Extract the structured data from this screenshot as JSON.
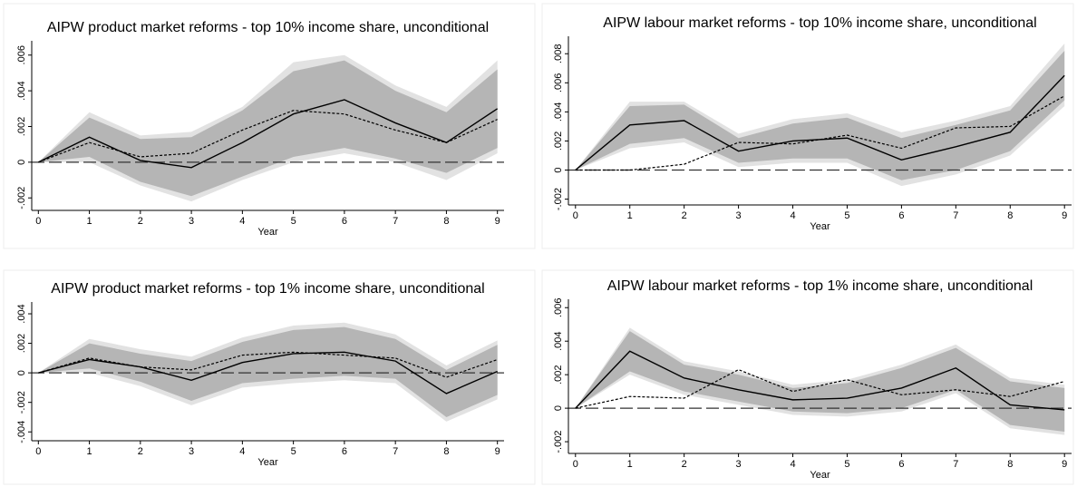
{
  "chart_data": [
    {
      "type": "line",
      "title": "AIPW product market reforms - top 10% income share, unconditional",
      "xlabel": "Year",
      "x": [
        0,
        1,
        2,
        3,
        4,
        5,
        6,
        7,
        8,
        9
      ],
      "xlim": [
        -0.13,
        9.13
      ],
      "xticks": [
        0,
        1,
        2,
        3,
        4,
        5,
        6,
        7,
        8,
        9
      ],
      "ylim": [
        -0.0027,
        0.0068
      ],
      "yticks": [
        {
          "value": -0.002,
          "label": "-.002"
        },
        0,
        {
          "value": 0.002,
          "label": ".002"
        },
        {
          "value": 0.004,
          "label": ".004"
        },
        {
          "value": 0.006,
          "label": ".006"
        }
      ],
      "hline": 0,
      "bands": [
        {
          "color": "#e2e2e2",
          "lower": [
            0,
            0,
            -0.0013,
            -0.0022,
            -0.001,
            0,
            0.0005,
            0,
            -0.001,
            0.0005
          ],
          "upper": [
            0,
            0.0028,
            0.0015,
            0.0017,
            0.0031,
            0.0056,
            0.006,
            0.0043,
            0.0031,
            0.0057
          ]
        },
        {
          "color": "#b5b5b5",
          "lower": [
            0,
            0.0003,
            -0.0011,
            -0.0019,
            -0.0008,
            0.0003,
            0.0008,
            0.0002,
            -0.0006,
            0.0008
          ],
          "upper": [
            0,
            0.0025,
            0.0013,
            0.0014,
            0.0029,
            0.0051,
            0.0057,
            0.004,
            0.0028,
            0.0052
          ]
        }
      ],
      "series": [
        {
          "color": "#000000",
          "style": "solid",
          "values": [
            0,
            0.0014,
            0.0001,
            -0.0003,
            0.0011,
            0.0027,
            0.0035,
            0.0022,
            0.0011,
            0.003
          ]
        },
        {
          "color": "#000000",
          "style": "dashed",
          "values": [
            0,
            0.0011,
            0.0003,
            0.0005,
            0.0018,
            0.0029,
            0.0027,
            0.0018,
            0.0011,
            0.0024
          ]
        }
      ]
    },
    {
      "type": "line",
      "title": "AIPW labour market reforms - top 10% income share, unconditional",
      "xlabel": "Year",
      "x": [
        0,
        1,
        2,
        3,
        4,
        5,
        6,
        7,
        8,
        9
      ],
      "xlim": [
        -0.13,
        9.13
      ],
      "xticks": [
        0,
        1,
        2,
        3,
        4,
        5,
        6,
        7,
        8,
        9
      ],
      "ylim": [
        -0.0024,
        0.0092
      ],
      "yticks": [
        {
          "value": -0.002,
          "label": "-.002"
        },
        0,
        {
          "value": 0.002,
          "label": ".002"
        },
        {
          "value": 0.004,
          "label": ".004"
        },
        {
          "value": 0.006,
          "label": ".006"
        },
        {
          "value": 0.008,
          "label": ".008"
        }
      ],
      "hline": 0,
      "bands": [
        {
          "color": "#e2e2e2",
          "lower": [
            0,
            0.0015,
            0.0019,
            0.0002,
            0.0005,
            0.0005,
            -0.0011,
            -0.0003,
            0.001,
            0.0044
          ],
          "upper": [
            0,
            0.0047,
            0.0047,
            0.0025,
            0.0035,
            0.0039,
            0.0026,
            0.0034,
            0.0044,
            0.0087
          ]
        },
        {
          "color": "#b5b5b5",
          "lower": [
            0,
            0.0018,
            0.0022,
            0.0005,
            0.0008,
            0.0008,
            -0.0007,
            0,
            0.0013,
            0.0048
          ],
          "upper": [
            0,
            0.0044,
            0.0045,
            0.0022,
            0.0032,
            0.0036,
            0.0022,
            0.0031,
            0.0041,
            0.0082
          ]
        }
      ],
      "series": [
        {
          "color": "#000000",
          "style": "solid",
          "values": [
            0,
            0.0031,
            0.0034,
            0.0013,
            0.002,
            0.0022,
            0.0007,
            0.0016,
            0.0026,
            0.0065
          ]
        },
        {
          "color": "#000000",
          "style": "dashed",
          "values": [
            0,
            0,
            0.0004,
            0.0019,
            0.0018,
            0.0024,
            0.0015,
            0.0029,
            0.003,
            0.0051
          ]
        }
      ]
    },
    {
      "type": "line",
      "title": "AIPW product market reforms - top 1% income share, unconditional",
      "xlabel": "Year",
      "x": [
        0,
        1,
        2,
        3,
        4,
        5,
        6,
        7,
        8,
        9
      ],
      "xlim": [
        -0.13,
        9.13
      ],
      "xticks": [
        0,
        1,
        2,
        3,
        4,
        5,
        6,
        7,
        8,
        9
      ],
      "ylim": [
        -0.0046,
        0.0048
      ],
      "yticks": [
        {
          "value": -0.004,
          "label": "-.004"
        },
        {
          "value": -0.002,
          "label": "-.002"
        },
        0,
        {
          "value": 0.002,
          "label": ".002"
        },
        {
          "value": 0.004,
          "label": ".004"
        }
      ],
      "hline": 0,
      "bands": [
        {
          "color": "#e2e2e2",
          "lower": [
            0,
            0,
            -0.0009,
            -0.0022,
            -0.001,
            -0.0007,
            -0.0005,
            -0.0007,
            -0.0033,
            -0.0018
          ],
          "upper": [
            0,
            0.0023,
            0.0016,
            0.0011,
            0.0024,
            0.0032,
            0.0034,
            0.0026,
            0.0005,
            0.0022
          ]
        },
        {
          "color": "#b5b5b5",
          "lower": [
            0,
            0.0003,
            -0.0006,
            -0.0019,
            -0.0007,
            -0.0004,
            -0.0002,
            -0.0004,
            -0.003,
            -0.0015
          ],
          "upper": [
            0,
            0.002,
            0.0013,
            0.0008,
            0.0021,
            0.0029,
            0.0031,
            0.0023,
            0.0002,
            0.0019
          ]
        }
      ],
      "series": [
        {
          "color": "#000000",
          "style": "solid",
          "values": [
            0,
            0.0009,
            0.0004,
            -0.0005,
            0.0007,
            0.0013,
            0.0014,
            0.0008,
            -0.0014,
            0.0001
          ]
        },
        {
          "color": "#000000",
          "style": "dashed",
          "values": [
            0,
            0.001,
            0.0004,
            0.0002,
            0.0012,
            0.0014,
            0.0012,
            0.001,
            -0.0003,
            0.0009
          ]
        }
      ]
    },
    {
      "type": "line",
      "title": "AIPW labour market reforms - top 1% income share, unconditional",
      "xlabel": "Year",
      "x": [
        0,
        1,
        2,
        3,
        4,
        5,
        6,
        7,
        8,
        9
      ],
      "xlim": [
        -0.13,
        9.13
      ],
      "xticks": [
        0,
        1,
        2,
        3,
        4,
        5,
        6,
        7,
        8,
        9
      ],
      "ylim": [
        -0.0027,
        0.0065
      ],
      "yticks": [
        {
          "value": -0.002,
          "label": "-.002"
        },
        0,
        {
          "value": 0.002,
          "label": ".002"
        },
        {
          "value": 0.004,
          "label": ".004"
        },
        {
          "value": 0.006,
          "label": ".006"
        }
      ],
      "hline": 0,
      "bands": [
        {
          "color": "#e2e2e2",
          "lower": [
            0,
            0.002,
            0.0008,
            0.0002,
            -0.0004,
            -0.0005,
            -0.0002,
            0.0009,
            -0.0012,
            -0.0016
          ],
          "upper": [
            0,
            0.0048,
            0.0028,
            0.0022,
            0.0014,
            0.0017,
            0.0026,
            0.0038,
            0.0018,
            0.0014
          ]
        },
        {
          "color": "#b5b5b5",
          "lower": [
            0,
            0.0022,
            0.001,
            0.0004,
            -0.0002,
            -0.0003,
            0,
            0.0011,
            -0.001,
            -0.0014
          ],
          "upper": [
            0,
            0.0046,
            0.0026,
            0.002,
            0.0012,
            0.0015,
            0.0024,
            0.0036,
            0.0016,
            0.0012
          ]
        }
      ],
      "series": [
        {
          "color": "#000000",
          "style": "solid",
          "values": [
            0,
            0.0034,
            0.0018,
            0.0011,
            0.0005,
            0.0006,
            0.0012,
            0.0024,
            0.0002,
            -0.0001
          ]
        },
        {
          "color": "#000000",
          "style": "dashed",
          "values": [
            0,
            0.0007,
            0.0006,
            0.0023,
            0.001,
            0.0017,
            0.0008,
            0.0011,
            0.0007,
            0.0016
          ]
        }
      ]
    }
  ]
}
